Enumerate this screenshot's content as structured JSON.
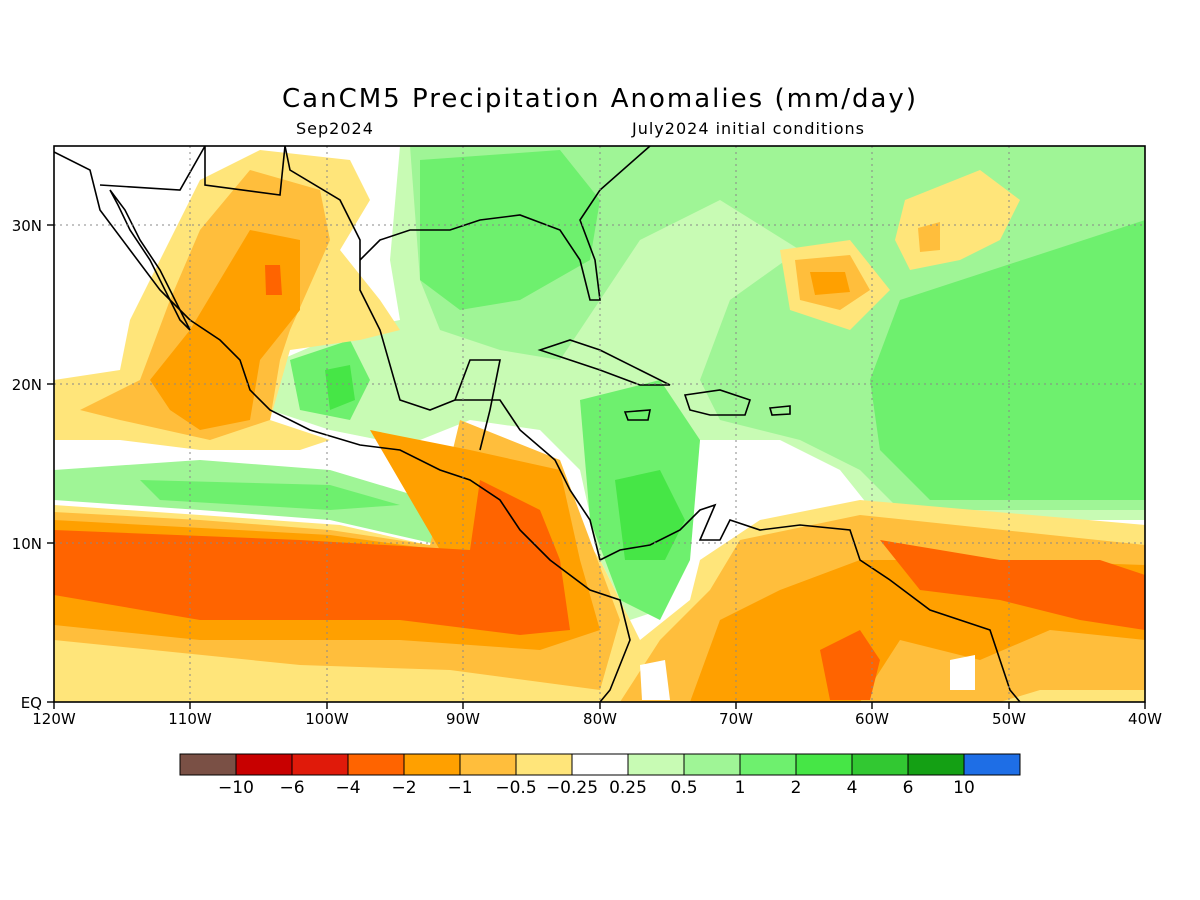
{
  "title": "CanCM5 Precipitation Anomalies (mm/day)",
  "subtitle_left": "Sep2024",
  "subtitle_right": "July2024 initial conditions",
  "map": {
    "lon_range": [
      -120,
      -40
    ],
    "lat_range": [
      0,
      35
    ],
    "lon_ticks": [
      "120W",
      "110W",
      "100W",
      "90W",
      "80W",
      "70W",
      "60W",
      "50W",
      "40W"
    ],
    "lat_ticks": [
      "EQ",
      "10N",
      "20N",
      "30N"
    ],
    "grid": "dotted"
  },
  "colors": {
    "brown": "#7a5045",
    "dark_red": "#c80000",
    "red": "#e01a0a",
    "orange_red": "#ff6400",
    "orange": "#ffa000",
    "light_orange": "#ffbe3c",
    "pale_yellow": "#ffe57a",
    "white": "#ffffff",
    "pale_green": "#c8fbb4",
    "light_green": "#9ff596",
    "green": "#6ef06e",
    "bright_green": "#46e646",
    "mid_green": "#32c832",
    "dark_green": "#14a014",
    "blue": "#1e6ee6"
  },
  "colorbar": {
    "labels": [
      "−10",
      "−6",
      "−4",
      "−2",
      "−1",
      "−0.5",
      "−0.25",
      "0.25",
      "0.5",
      "1",
      "2",
      "4",
      "6",
      "10"
    ],
    "colors": [
      "#7a5045",
      "#c80000",
      "#e01a0a",
      "#ff6400",
      "#ffa000",
      "#ffbe3c",
      "#ffe57a",
      "#ffffff",
      "#c8fbb4",
      "#9ff596",
      "#6ef06e",
      "#46e646",
      "#32c832",
      "#14a014",
      "#1e6ee6"
    ]
  }
}
